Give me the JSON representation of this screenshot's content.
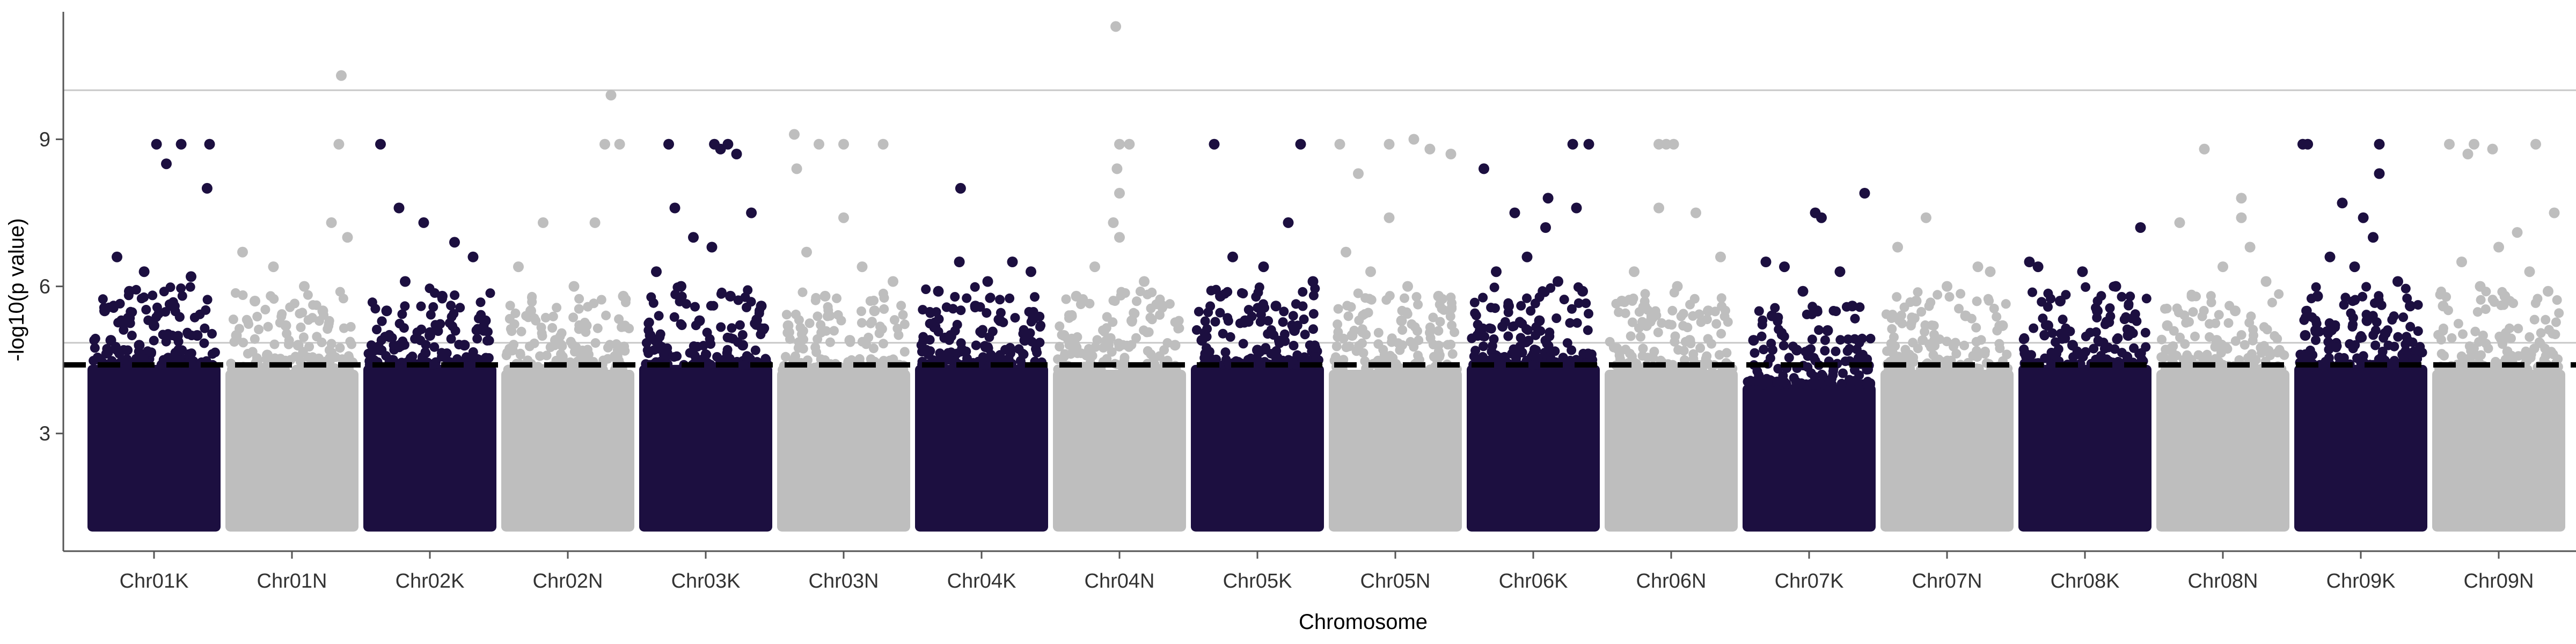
{
  "chart_data": {
    "type": "scatter",
    "subtype": "manhattan",
    "title": "",
    "xlabel": "Chromosome",
    "ylabel": "-log10(p value)",
    "ylim": [
      0.6,
      11.6
    ],
    "yticks": [
      3,
      6,
      9
    ],
    "grid": false,
    "legend": "none",
    "colors": {
      "dark": "#1c0f40",
      "light": "#bebebe",
      "axis": "#555555",
      "hline": "#c8c8c8",
      "threshold": "#000000"
    },
    "reference_lines": {
      "significance": 10.0,
      "suggestive": 4.85,
      "threshold_dashed": 4.4
    },
    "categories": [
      "Chr01K",
      "Chr01N",
      "Chr02K",
      "Chr02N",
      "Chr03K",
      "Chr03N",
      "Chr04K",
      "Chr04N",
      "Chr05K",
      "Chr05N",
      "Chr06K",
      "Chr06N",
      "Chr07K",
      "Chr07N",
      "Chr08K",
      "Chr08N",
      "Chr09K",
      "Chr09N"
    ],
    "series": [
      {
        "chromosome": "Chr01K",
        "color": "dark",
        "base_min": 1.0,
        "base_max": 4.4,
        "top_hits": [
          [
            0.52,
            8.9
          ],
          [
            0.72,
            8.9
          ],
          [
            0.95,
            8.9
          ],
          [
            0.6,
            8.5
          ],
          [
            0.93,
            8.0
          ],
          [
            0.2,
            6.6
          ],
          [
            0.42,
            6.3
          ],
          [
            0.8,
            6.2
          ],
          [
            0.3,
            5.9
          ],
          [
            0.65,
            5.6
          ],
          [
            0.1,
            5.5
          ],
          [
            0.5,
            5.2
          ],
          [
            0.85,
            5.0
          ],
          [
            0.15,
            4.9
          ],
          [
            0.38,
            4.8
          ],
          [
            0.7,
            4.7
          ]
        ]
      },
      {
        "chromosome": "Chr01N",
        "color": "light",
        "base_min": 1.0,
        "base_max": 4.3,
        "top_hits": [
          [
            0.9,
            10.3
          ],
          [
            0.88,
            8.9
          ],
          [
            0.82,
            7.3
          ],
          [
            0.95,
            7.0
          ],
          [
            0.1,
            6.7
          ],
          [
            0.35,
            6.4
          ],
          [
            0.6,
            6.0
          ],
          [
            0.2,
            5.7
          ],
          [
            0.75,
            5.5
          ],
          [
            0.45,
            5.2
          ],
          [
            0.05,
            5.0
          ],
          [
            0.55,
            4.8
          ],
          [
            0.3,
            4.6
          ]
        ]
      },
      {
        "chromosome": "Chr02K",
        "color": "dark",
        "base_min": 1.0,
        "base_max": 4.4,
        "top_hits": [
          [
            0.1,
            8.9
          ],
          [
            0.25,
            7.6
          ],
          [
            0.45,
            7.3
          ],
          [
            0.7,
            6.9
          ],
          [
            0.85,
            6.6
          ],
          [
            0.3,
            6.1
          ],
          [
            0.6,
            5.8
          ],
          [
            0.15,
            5.5
          ],
          [
            0.95,
            5.3
          ],
          [
            0.5,
            5.0
          ],
          [
            0.78,
            4.8
          ],
          [
            0.05,
            4.7
          ]
        ]
      },
      {
        "chromosome": "Chr02N",
        "color": "light",
        "base_min": 1.0,
        "base_max": 4.3,
        "top_hits": [
          [
            0.85,
            9.9
          ],
          [
            0.8,
            8.9
          ],
          [
            0.92,
            8.9
          ],
          [
            0.72,
            7.3
          ],
          [
            0.3,
            7.3
          ],
          [
            0.1,
            6.4
          ],
          [
            0.55,
            6.0
          ],
          [
            0.95,
            5.8
          ],
          [
            0.2,
            5.5
          ],
          [
            0.65,
            5.2
          ],
          [
            0.4,
            4.9
          ],
          [
            0.05,
            4.7
          ]
        ]
      },
      {
        "chromosome": "Chr03K",
        "color": "dark",
        "base_min": 1.0,
        "base_max": 4.4,
        "top_hits": [
          [
            0.2,
            8.9
          ],
          [
            0.57,
            8.9
          ],
          [
            0.62,
            8.8
          ],
          [
            0.68,
            8.9
          ],
          [
            0.75,
            8.7
          ],
          [
            0.25,
            7.6
          ],
          [
            0.87,
            7.5
          ],
          [
            0.4,
            7.0
          ],
          [
            0.55,
            6.8
          ],
          [
            0.1,
            6.3
          ],
          [
            0.3,
            6.0
          ],
          [
            0.7,
            5.8
          ],
          [
            0.95,
            5.6
          ],
          [
            0.45,
            5.3
          ],
          [
            0.05,
            5.0
          ],
          [
            0.8,
            4.8
          ]
        ]
      },
      {
        "chromosome": "Chr03N",
        "color": "light",
        "base_min": 1.0,
        "base_max": 4.3,
        "top_hits": [
          [
            0.1,
            9.1
          ],
          [
            0.12,
            8.4
          ],
          [
            0.3,
            8.9
          ],
          [
            0.5,
            8.9
          ],
          [
            0.82,
            8.9
          ],
          [
            0.5,
            7.4
          ],
          [
            0.2,
            6.7
          ],
          [
            0.65,
            6.4
          ],
          [
            0.9,
            6.1
          ],
          [
            0.35,
            5.8
          ],
          [
            0.75,
            5.5
          ],
          [
            0.05,
            5.2
          ],
          [
            0.55,
            4.9
          ]
        ]
      },
      {
        "chromosome": "Chr04K",
        "color": "dark",
        "base_min": 1.0,
        "base_max": 4.4,
        "top_hits": [
          [
            0.33,
            8.0
          ],
          [
            0.32,
            6.5
          ],
          [
            0.75,
            6.5
          ],
          [
            0.55,
            6.1
          ],
          [
            0.9,
            6.3
          ],
          [
            0.15,
            5.9
          ],
          [
            0.45,
            5.6
          ],
          [
            0.65,
            5.3
          ],
          [
            0.25,
            5.0
          ],
          [
            0.85,
            4.9
          ],
          [
            0.05,
            4.7
          ]
        ]
      },
      {
        "chromosome": "Chr04N",
        "color": "light",
        "base_min": 1.0,
        "base_max": 4.3,
        "top_hits": [
          [
            0.47,
            11.3
          ],
          [
            0.5,
            8.9
          ],
          [
            0.58,
            8.9
          ],
          [
            0.48,
            8.4
          ],
          [
            0.5,
            7.9
          ],
          [
            0.45,
            7.3
          ],
          [
            0.5,
            7.0
          ],
          [
            0.3,
            6.4
          ],
          [
            0.7,
            6.1
          ],
          [
            0.15,
            5.8
          ],
          [
            0.85,
            5.6
          ],
          [
            0.6,
            5.3
          ],
          [
            0.05,
            5.0
          ],
          [
            0.95,
            4.8
          ]
        ]
      },
      {
        "chromosome": "Chr05K",
        "color": "dark",
        "base_min": 1.0,
        "base_max": 4.4,
        "top_hits": [
          [
            0.15,
            8.9
          ],
          [
            0.85,
            8.9
          ],
          [
            0.75,
            7.3
          ],
          [
            0.3,
            6.6
          ],
          [
            0.55,
            6.4
          ],
          [
            0.95,
            6.1
          ],
          [
            0.2,
            5.8
          ],
          [
            0.65,
            5.6
          ],
          [
            0.4,
            5.3
          ],
          [
            0.8,
            5.1
          ],
          [
            0.05,
            4.9
          ],
          [
            0.5,
            4.7
          ]
        ]
      },
      {
        "chromosome": "Chr05N",
        "color": "light",
        "base_min": 1.0,
        "base_max": 4.3,
        "top_hits": [
          [
            0.05,
            8.9
          ],
          [
            0.2,
            8.3
          ],
          [
            0.45,
            8.9
          ],
          [
            0.65,
            9.0
          ],
          [
            0.78,
            8.8
          ],
          [
            0.95,
            8.7
          ],
          [
            0.1,
            6.7
          ],
          [
            0.45,
            7.4
          ],
          [
            0.3,
            6.3
          ],
          [
            0.6,
            6.0
          ],
          [
            0.85,
            5.8
          ],
          [
            0.55,
            5.3
          ],
          [
            0.15,
            5.0
          ]
        ]
      },
      {
        "chromosome": "Chr06K",
        "color": "dark",
        "base_min": 1.0,
        "base_max": 4.4,
        "top_hits": [
          [
            0.1,
            8.4
          ],
          [
            0.82,
            8.9
          ],
          [
            0.95,
            8.9
          ],
          [
            0.62,
            7.8
          ],
          [
            0.85,
            7.6
          ],
          [
            0.35,
            7.5
          ],
          [
            0.6,
            7.2
          ],
          [
            0.45,
            6.6
          ],
          [
            0.2,
            6.3
          ],
          [
            0.7,
            6.1
          ],
          [
            0.9,
            5.9
          ],
          [
            0.3,
            5.6
          ],
          [
            0.55,
            5.3
          ],
          [
            0.05,
            5.0
          ]
        ]
      },
      {
        "chromosome": "Chr06N",
        "color": "light",
        "base_min": 1.0,
        "base_max": 4.3,
        "top_hits": [
          [
            0.4,
            8.9
          ],
          [
            0.46,
            8.9
          ],
          [
            0.52,
            8.9
          ],
          [
            0.4,
            7.6
          ],
          [
            0.7,
            7.5
          ],
          [
            0.9,
            6.6
          ],
          [
            0.2,
            6.3
          ],
          [
            0.55,
            6.0
          ],
          [
            0.1,
            5.7
          ],
          [
            0.8,
            5.5
          ],
          [
            0.3,
            5.2
          ],
          [
            0.65,
            4.9
          ]
        ]
      },
      {
        "chromosome": "Chr07K",
        "color": "dark",
        "base_min": 1.0,
        "base_max": 4.0,
        "top_hits": [
          [
            0.95,
            7.9
          ],
          [
            0.55,
            7.5
          ],
          [
            0.6,
            7.4
          ],
          [
            0.15,
            6.5
          ],
          [
            0.3,
            6.4
          ],
          [
            0.75,
            6.3
          ],
          [
            0.45,
            5.9
          ],
          [
            0.85,
            5.6
          ],
          [
            0.2,
            5.4
          ],
          [
            0.65,
            5.1
          ],
          [
            0.05,
            4.9
          ],
          [
            0.4,
            4.7
          ]
        ]
      },
      {
        "chromosome": "Chr07N",
        "color": "light",
        "base_min": 1.0,
        "base_max": 4.3,
        "top_hits": [
          [
            0.33,
            7.4
          ],
          [
            0.1,
            6.8
          ],
          [
            0.75,
            6.4
          ],
          [
            0.85,
            6.3
          ],
          [
            0.5,
            6.0
          ],
          [
            0.25,
            5.7
          ],
          [
            0.65,
            5.4
          ],
          [
            0.95,
            5.2
          ],
          [
            0.4,
            4.9
          ],
          [
            0.05,
            4.7
          ]
        ]
      },
      {
        "chromosome": "Chr08K",
        "color": "dark",
        "base_min": 1.0,
        "base_max": 4.4,
        "top_hits": [
          [
            0.95,
            7.2
          ],
          [
            0.05,
            6.5
          ],
          [
            0.12,
            6.4
          ],
          [
            0.48,
            6.3
          ],
          [
            0.75,
            6.0
          ],
          [
            0.3,
            5.7
          ],
          [
            0.6,
            5.5
          ],
          [
            0.2,
            5.2
          ],
          [
            0.85,
            5.0
          ],
          [
            0.4,
            4.8
          ]
        ]
      },
      {
        "chromosome": "Chr08N",
        "color": "light",
        "base_min": 1.0,
        "base_max": 4.3,
        "top_hits": [
          [
            0.35,
            8.8
          ],
          [
            0.65,
            7.8
          ],
          [
            0.65,
            7.4
          ],
          [
            0.15,
            7.3
          ],
          [
            0.72,
            6.8
          ],
          [
            0.5,
            6.4
          ],
          [
            0.85,
            6.1
          ],
          [
            0.25,
            5.8
          ],
          [
            0.6,
            5.5
          ],
          [
            0.05,
            5.2
          ],
          [
            0.45,
            4.9
          ]
        ]
      },
      {
        "chromosome": "Chr09K",
        "color": "dark",
        "base_min": 1.0,
        "base_max": 4.4,
        "top_hits": [
          [
            0.03,
            8.9
          ],
          [
            0.07,
            8.9
          ],
          [
            0.65,
            8.9
          ],
          [
            0.65,
            8.3
          ],
          [
            0.35,
            7.7
          ],
          [
            0.52,
            7.4
          ],
          [
            0.6,
            7.0
          ],
          [
            0.25,
            6.6
          ],
          [
            0.45,
            6.4
          ],
          [
            0.8,
            6.1
          ],
          [
            0.15,
            5.8
          ],
          [
            0.9,
            5.6
          ],
          [
            0.55,
            5.3
          ],
          [
            0.05,
            5.0
          ]
        ]
      },
      {
        "chromosome": "Chr09N",
        "color": "light",
        "base_min": 1.0,
        "base_max": 4.3,
        "top_hits": [
          [
            0.1,
            8.9
          ],
          [
            0.3,
            8.9
          ],
          [
            0.45,
            8.8
          ],
          [
            0.8,
            8.9
          ],
          [
            0.25,
            8.7
          ],
          [
            0.65,
            7.1
          ],
          [
            0.95,
            7.5
          ],
          [
            0.5,
            6.8
          ],
          [
            0.2,
            6.5
          ],
          [
            0.75,
            6.3
          ],
          [
            0.35,
            6.0
          ],
          [
            0.9,
            5.9
          ],
          [
            0.55,
            5.8
          ],
          [
            0.05,
            5.6
          ]
        ]
      }
    ]
  }
}
